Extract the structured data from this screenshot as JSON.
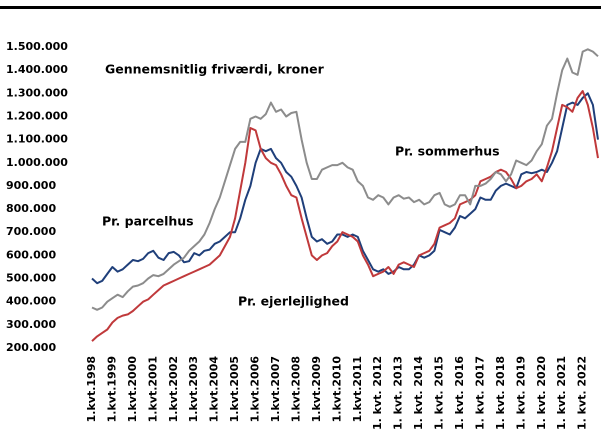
{
  "chart_data": {
    "type": "line",
    "title": "Gennemsnitlig friværdi, kroner",
    "categories": [
      "1.kvt.1998",
      null,
      null,
      null,
      "1.kvt.1999",
      null,
      null,
      null,
      "1.kvt.2000",
      null,
      null,
      null,
      "1.kvt.2001",
      null,
      null,
      null,
      "1.kvt.2002",
      null,
      null,
      null,
      "1.kvt.2003",
      null,
      null,
      null,
      "1.kvt.2004",
      null,
      null,
      null,
      "1.kvt.2005",
      null,
      null,
      null,
      "1.kvt.2006",
      null,
      null,
      null,
      "1.kvt.2007",
      null,
      null,
      null,
      "1.kvt.2008",
      null,
      null,
      null,
      "1.kvt.2009",
      null,
      null,
      null,
      "1.kvt.2010",
      null,
      null,
      null,
      "1.kvt.2011",
      null,
      null,
      null,
      "1. kvt. 2012",
      null,
      null,
      null,
      "1. kvt. 2013",
      null,
      null,
      null,
      "1. kvt. 2014",
      null,
      null,
      null,
      "1. kvt. 2015",
      null,
      null,
      null,
      "1. kvt. 2016",
      null,
      null,
      null,
      "1. kvt. 2017",
      null,
      null,
      null,
      "1. kvt. 2018",
      null,
      null,
      null,
      "1. kvt. 2019",
      null,
      null,
      null,
      "1. kvt. 2020",
      null,
      null,
      null,
      "1. kvt. 2021",
      null,
      null,
      null,
      "1. kvt. 2022",
      null,
      null,
      null
    ],
    "series": [
      {
        "name": "Pr. parcelhus",
        "color": "#1f3f7a",
        "values": [
          500000,
          480000,
          490000,
          520000,
          550000,
          530000,
          540000,
          560000,
          580000,
          575000,
          585000,
          610000,
          620000,
          590000,
          580000,
          610000,
          615000,
          600000,
          570000,
          575000,
          610000,
          600000,
          620000,
          625000,
          650000,
          660000,
          680000,
          700000,
          700000,
          760000,
          840000,
          900000,
          1000000,
          1060000,
          1050000,
          1060000,
          1020000,
          1000000,
          960000,
          940000,
          900000,
          850000,
          760000,
          680000,
          660000,
          670000,
          650000,
          660000,
          690000,
          690000,
          680000,
          690000,
          680000,
          620000,
          580000,
          540000,
          530000,
          540000,
          520000,
          530000,
          550000,
          540000,
          540000,
          560000,
          600000,
          590000,
          600000,
          620000,
          710000,
          700000,
          690000,
          720000,
          770000,
          760000,
          780000,
          800000,
          850000,
          840000,
          840000,
          880000,
          900000,
          910000,
          900000,
          890000,
          950000,
          960000,
          955000,
          960000,
          970000,
          960000,
          1000000,
          1050000,
          1150000,
          1250000,
          1260000,
          1250000,
          1280000,
          1300000,
          1250000,
          1100000
        ]
      },
      {
        "name": "Pr. ejerlejlighed",
        "color": "#c0393b",
        "values": [
          230000,
          250000,
          265000,
          280000,
          310000,
          330000,
          340000,
          345000,
          360000,
          380000,
          400000,
          410000,
          430000,
          450000,
          470000,
          480000,
          490000,
          500000,
          510000,
          520000,
          530000,
          540000,
          550000,
          560000,
          580000,
          600000,
          640000,
          680000,
          760000,
          880000,
          1000000,
          1150000,
          1140000,
          1060000,
          1020000,
          1000000,
          990000,
          950000,
          900000,
          860000,
          850000,
          760000,
          680000,
          600000,
          580000,
          600000,
          610000,
          640000,
          660000,
          700000,
          690000,
          680000,
          660000,
          600000,
          560000,
          510000,
          520000,
          530000,
          550000,
          520000,
          560000,
          570000,
          560000,
          550000,
          600000,
          610000,
          620000,
          650000,
          720000,
          730000,
          740000,
          760000,
          820000,
          830000,
          840000,
          860000,
          920000,
          930000,
          940000,
          960000,
          970000,
          960000,
          930000,
          890000,
          900000,
          920000,
          930000,
          950000,
          920000,
          980000,
          1050000,
          1150000,
          1250000,
          1240000,
          1220000,
          1280000,
          1310000,
          1250000,
          1150000,
          1020000
        ]
      },
      {
        "name": "Pr. sommerhus",
        "color": "#8c8c8c",
        "values": [
          375000,
          365000,
          375000,
          400000,
          415000,
          430000,
          420000,
          445000,
          465000,
          470000,
          480000,
          500000,
          515000,
          510000,
          520000,
          540000,
          560000,
          575000,
          590000,
          620000,
          640000,
          660000,
          690000,
          740000,
          800000,
          850000,
          920000,
          990000,
          1060000,
          1090000,
          1090000,
          1190000,
          1200000,
          1190000,
          1210000,
          1260000,
          1220000,
          1230000,
          1200000,
          1215000,
          1220000,
          1100000,
          1000000,
          930000,
          930000,
          970000,
          980000,
          990000,
          990000,
          1000000,
          980000,
          970000,
          920000,
          900000,
          850000,
          840000,
          860000,
          850000,
          820000,
          850000,
          860000,
          845000,
          850000,
          830000,
          840000,
          820000,
          830000,
          860000,
          870000,
          820000,
          810000,
          820000,
          860000,
          860000,
          820000,
          900000,
          900000,
          910000,
          930000,
          960000,
          950000,
          920000,
          950000,
          1010000,
          1000000,
          990000,
          1010000,
          1050000,
          1080000,
          1160000,
          1190000,
          1300000,
          1400000,
          1450000,
          1390000,
          1380000,
          1480000,
          1490000,
          1480000,
          1460000
        ]
      }
    ],
    "ylim": [
      200000,
      1500000
    ],
    "yticks": [
      {
        "value": 200000,
        "label": "200.000"
      },
      {
        "value": 300000,
        "label": "300.000"
      },
      {
        "value": 400000,
        "label": "400.000"
      },
      {
        "value": 500000,
        "label": "500.000"
      },
      {
        "value": 600000,
        "label": "600.000"
      },
      {
        "value": 700000,
        "label": "700.000"
      },
      {
        "value": 800000,
        "label": "800.000"
      },
      {
        "value": 900000,
        "label": "900.000"
      },
      {
        "value": 1000000,
        "label": "1.000.000"
      },
      {
        "value": 1100000,
        "label": "1.100.000"
      },
      {
        "value": 1200000,
        "label": "1.200.000"
      },
      {
        "value": 1300000,
        "label": "1.300.000"
      },
      {
        "value": 1400000,
        "label": "1.400.000"
      },
      {
        "value": 1500000,
        "label": "1.500.000"
      }
    ],
    "grid": false
  }
}
